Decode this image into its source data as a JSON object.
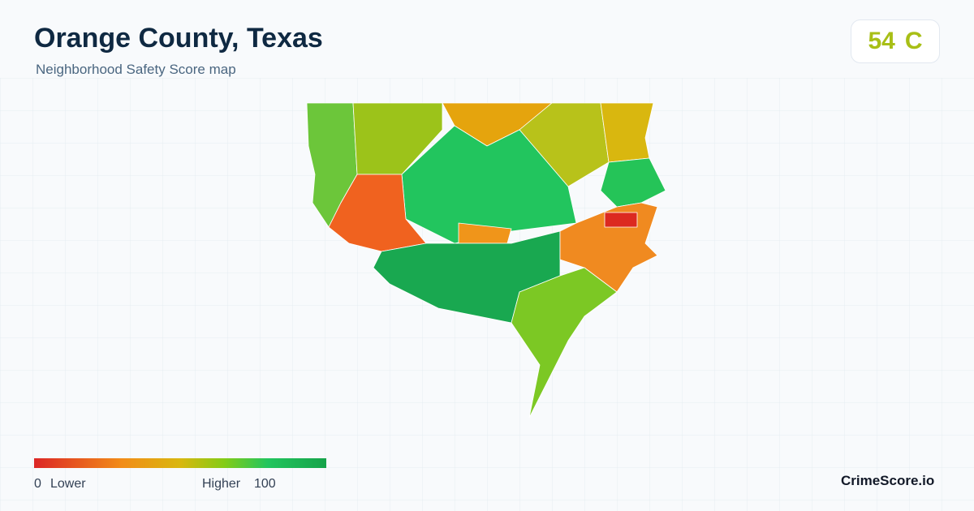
{
  "header": {
    "title": "Orange County, Texas",
    "subtitle": "Neighborhood Safety Score map"
  },
  "score": {
    "value": 54,
    "grade": "C"
  },
  "legend": {
    "min": 0,
    "min_label": "Lower",
    "max_label": "Higher",
    "max": 100
  },
  "brand": "CrimeScore.io"
}
